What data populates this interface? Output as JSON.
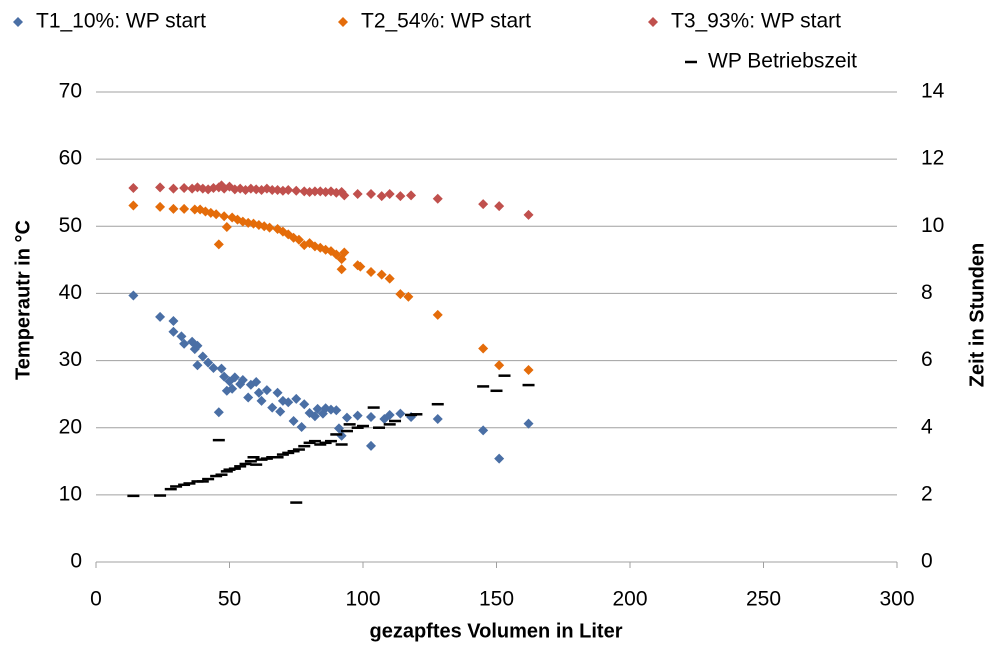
{
  "chart_data": {
    "type": "scatter",
    "x_label": "gezapftes Volumen in Liter",
    "y_label": "Temperautr in °C",
    "y2_label": "Zeit in Stunden",
    "xlim": [
      0,
      300
    ],
    "xticks": [
      0,
      50,
      100,
      150,
      200,
      250,
      300
    ],
    "ylim": [
      0,
      70
    ],
    "yticks": [
      0,
      10,
      20,
      30,
      40,
      50,
      60,
      70
    ],
    "y2lim": [
      0,
      14
    ],
    "y2ticks": [
      0,
      2,
      4,
      6,
      8,
      10,
      12,
      14
    ],
    "grid": true,
    "series": [
      {
        "name": "T1_10%: WP start",
        "color": "#4a6fa5",
        "marker": "diamond",
        "x": [
          14,
          24,
          29,
          29,
          32,
          33,
          36,
          37,
          38,
          38,
          40,
          42,
          44,
          46,
          47,
          48,
          49,
          50,
          51,
          52,
          54,
          55,
          57,
          58,
          60,
          61,
          62,
          64,
          66,
          68,
          69,
          70,
          72,
          74,
          75,
          77,
          78,
          80,
          82,
          83,
          85,
          86,
          88,
          90,
          91,
          92,
          94,
          98,
          103,
          103,
          108,
          110,
          114,
          118,
          128,
          145,
          151,
          162
        ],
        "values": [
          39.7,
          36.5,
          35.9,
          34.3,
          33.6,
          32.5,
          32.8,
          31.7,
          32.2,
          29.3,
          30.6,
          29.7,
          28.9,
          22.3,
          28.8,
          27.6,
          25.5,
          26.9,
          25.8,
          27.5,
          26.5,
          27.1,
          24.5,
          26.4,
          26.8,
          25.2,
          24.0,
          25.6,
          23.0,
          25.2,
          22.4,
          24.0,
          23.8,
          21.0,
          24.3,
          20.1,
          23.5,
          22.2,
          21.7,
          22.8,
          22.1,
          22.9,
          22.7,
          22.6,
          19.9,
          18.8,
          21.5,
          21.8,
          17.3,
          21.6,
          21.3,
          21.9,
          22.1,
          21.6,
          21.3,
          19.6,
          15.4,
          20.6
        ]
      },
      {
        "name": "T2_54%: WP start",
        "color": "#e46c0a",
        "marker": "diamond",
        "x": [
          14,
          24,
          29,
          33,
          37,
          39,
          41,
          43,
          45,
          46,
          48,
          49,
          51,
          53,
          55,
          57,
          59,
          61,
          63,
          65,
          68,
          70,
          72,
          74,
          76,
          78,
          80,
          82,
          84,
          86,
          88,
          90,
          92,
          92,
          93,
          98,
          99,
          103,
          107,
          110,
          114,
          117,
          128,
          145,
          151,
          162
        ],
        "values": [
          53.1,
          52.9,
          52.6,
          52.6,
          52.5,
          52.5,
          52.2,
          52.0,
          51.8,
          47.3,
          51.5,
          49.9,
          51.3,
          51.0,
          50.7,
          50.5,
          50.4,
          50.2,
          50.0,
          49.8,
          49.6,
          49.2,
          48.8,
          48.3,
          48.0,
          47.2,
          47.5,
          47.0,
          46.8,
          46.5,
          46.3,
          45.8,
          45.1,
          43.6,
          46.1,
          44.2,
          44.0,
          43.2,
          42.8,
          42.2,
          39.9,
          39.5,
          36.8,
          31.8,
          29.3,
          28.6
        ]
      },
      {
        "name": "T3_93%: WP start",
        "color": "#c0504d",
        "marker": "diamond",
        "x": [
          14,
          24,
          29,
          33,
          36,
          38,
          40,
          42,
          44,
          46,
          47,
          48,
          50,
          52,
          54,
          56,
          58,
          60,
          62,
          64,
          66,
          68,
          70,
          72,
          75,
          78,
          80,
          82,
          84,
          86,
          88,
          90,
          92,
          93,
          98,
          103,
          107,
          110,
          114,
          118,
          128,
          145,
          151,
          162
        ],
        "values": [
          55.7,
          55.8,
          55.6,
          55.7,
          55.6,
          55.8,
          55.6,
          55.5,
          55.7,
          55.8,
          56.1,
          55.6,
          55.9,
          55.5,
          55.6,
          55.4,
          55.6,
          55.5,
          55.4,
          55.6,
          55.4,
          55.4,
          55.3,
          55.4,
          55.3,
          55.2,
          55.1,
          55.2,
          55.2,
          55.1,
          55.2,
          55.0,
          55.1,
          54.6,
          54.8,
          54.8,
          54.5,
          54.8,
          54.5,
          54.6,
          54.1,
          53.3,
          53.0,
          51.7
        ]
      },
      {
        "name": "WP Betriebszeit",
        "color": "#000000",
        "marker": "dash",
        "axis": "y2",
        "x": [
          14,
          24,
          28,
          30,
          33,
          35,
          38,
          40,
          42,
          45,
          46,
          47,
          49,
          50,
          52,
          54,
          56,
          58,
          59,
          60,
          62,
          64,
          66,
          68,
          70,
          72,
          74,
          75,
          76,
          78,
          80,
          82,
          84,
          86,
          88,
          90,
          92,
          94,
          95,
          98,
          100,
          104,
          106,
          110,
          112,
          118,
          120,
          128,
          145,
          150,
          153,
          162
        ],
        "values": [
          1.97,
          1.98,
          2.17,
          2.25,
          2.3,
          2.34,
          2.4,
          2.4,
          2.47,
          2.56,
          3.63,
          2.6,
          2.7,
          2.75,
          2.78,
          2.85,
          2.92,
          3.0,
          3.12,
          2.9,
          3.05,
          3.08,
          3.12,
          3.12,
          3.2,
          3.25,
          3.3,
          1.77,
          3.35,
          3.45,
          3.55,
          3.6,
          3.5,
          3.55,
          3.6,
          3.8,
          3.5,
          3.9,
          4.1,
          4.0,
          4.05,
          4.6,
          4.0,
          4.1,
          4.2,
          4.38,
          4.4,
          4.7,
          5.23,
          5.1,
          5.55,
          5.27
        ]
      }
    ]
  }
}
